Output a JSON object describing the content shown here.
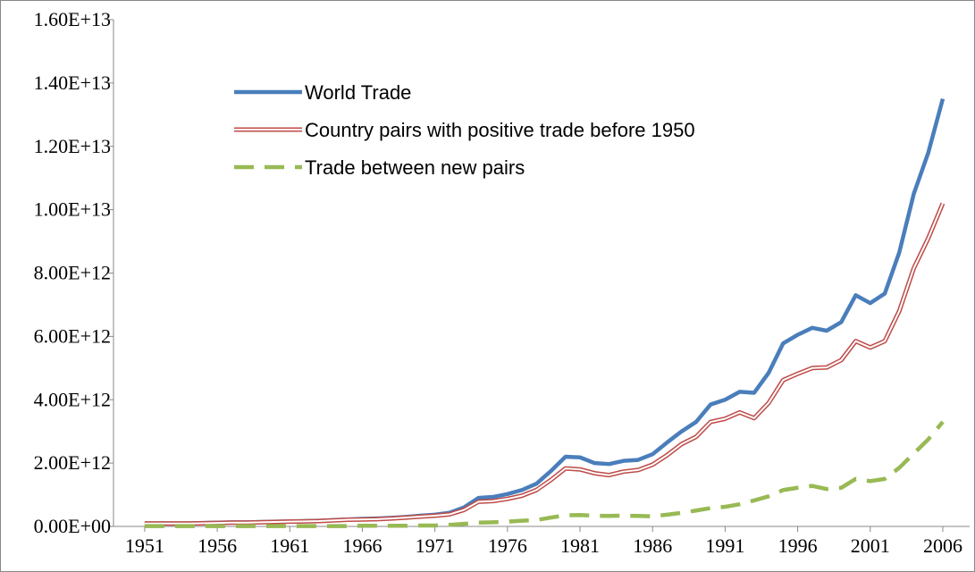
{
  "chart_data": {
    "type": "line",
    "x": [
      1951,
      1952,
      1953,
      1954,
      1955,
      1956,
      1957,
      1958,
      1959,
      1960,
      1961,
      1962,
      1963,
      1964,
      1965,
      1966,
      1967,
      1968,
      1969,
      1970,
      1971,
      1972,
      1973,
      1974,
      1975,
      1976,
      1977,
      1978,
      1979,
      1980,
      1981,
      1982,
      1983,
      1984,
      1985,
      1986,
      1987,
      1988,
      1989,
      1990,
      1991,
      1992,
      1993,
      1994,
      1995,
      1996,
      1997,
      1998,
      1999,
      2000,
      2001,
      2002,
      2003,
      2004,
      2005,
      2006
    ],
    "xlim": [
      1948.85,
      2007.85
    ],
    "xticks": [
      1951,
      1956,
      1961,
      1966,
      1971,
      1976,
      1981,
      1986,
      1991,
      1996,
      2001,
      2006
    ],
    "ylim": [
      0,
      16000000000000.0
    ],
    "yticks": [
      {
        "value": 0,
        "label": "0.00E+00"
      },
      {
        "value": 2000000000000.0,
        "label": "2.00E+12"
      },
      {
        "value": 4000000000000.0,
        "label": "4.00E+12"
      },
      {
        "value": 6000000000000.0,
        "label": "6.00E+12"
      },
      {
        "value": 8000000000000.0,
        "label": "8.00E+12"
      },
      {
        "value": 10000000000000.0,
        "label": "1.00E+13"
      },
      {
        "value": 12000000000000.0,
        "label": "1.20E+13"
      },
      {
        "value": 14000000000000.0,
        "label": "1.40E+13"
      },
      {
        "value": 16000000000000.0,
        "label": "1.60E+13"
      }
    ],
    "grid": false,
    "legend": "upper left",
    "series": [
      {
        "name": "World Trade",
        "color": "#4a7ebb",
        "line_style": "solid",
        "values": [
          100000000000.0,
          100000000000.0,
          100000000000.0,
          100000000000.0,
          110000000000.0,
          120000000000.0,
          130000000000.0,
          130000000000.0,
          140000000000.0,
          150000000000.0,
          160000000000.0,
          170000000000.0,
          180000000000.0,
          200000000000.0,
          220000000000.0,
          240000000000.0,
          250000000000.0,
          270000000000.0,
          300000000000.0,
          340000000000.0,
          370000000000.0,
          430000000000.0,
          600000000000.0,
          900000000000.0,
          930000000000.0,
          1020000000000.0,
          1150000000000.0,
          1350000000000.0,
          1750000000000.0,
          2200000000000.0,
          2180000000000.0,
          2000000000000.0,
          1970000000000.0,
          2070000000000.0,
          2100000000000.0,
          2280000000000.0,
          2650000000000.0,
          3000000000000.0,
          3300000000000.0,
          3850000000000.0,
          4000000000000.0,
          4250000000000.0,
          4220000000000.0,
          4850000000000.0,
          5780000000000.0,
          6050000000000.0,
          6270000000000.0,
          6180000000000.0,
          6450000000000.0,
          7300000000000.0,
          7050000000000.0,
          7350000000000.0,
          8650000000000.0,
          10500000000000.0,
          11800000000000.0,
          13500000000000.0
        ]
      },
      {
        "name": "Country pairs with positive trade before 1950",
        "color": "#be4b48",
        "line_style": "double",
        "values": [
          90000000000.0,
          90000000000.0,
          90000000000.0,
          90000000000.0,
          100000000000.0,
          110000000000.0,
          120000000000.0,
          120000000000.0,
          130000000000.0,
          140000000000.0,
          150000000000.0,
          160000000000.0,
          170000000000.0,
          190000000000.0,
          210000000000.0,
          220000000000.0,
          230000000000.0,
          250000000000.0,
          280000000000.0,
          310000000000.0,
          340000000000.0,
          380000000000.0,
          520000000000.0,
          780000000000.0,
          800000000000.0,
          870000000000.0,
          970000000000.0,
          1150000000000.0,
          1470000000000.0,
          1830000000000.0,
          1800000000000.0,
          1680000000000.0,
          1620000000000.0,
          1730000000000.0,
          1780000000000.0,
          1950000000000.0,
          2250000000000.0,
          2600000000000.0,
          2830000000000.0,
          3300000000000.0,
          3400000000000.0,
          3600000000000.0,
          3420000000000.0,
          3900000000000.0,
          4620000000000.0,
          4820000000000.0,
          5000000000000.0,
          5020000000000.0,
          5250000000000.0,
          5850000000000.0,
          5650000000000.0,
          5850000000000.0,
          6800000000000.0,
          8150000000000.0,
          9100000000000.0,
          10200000000000.0
        ]
      },
      {
        "name": "Trade between new pairs",
        "color": "#98b954",
        "line_style": "dashed",
        "values": [
          10000000000.0,
          10000000000.0,
          10000000000.0,
          10000000000.0,
          10000000000.0,
          10000000000.0,
          10000000000.0,
          10000000000.0,
          10000000000.0,
          10000000000.0,
          10000000000.0,
          10000000000.0,
          10000000000.0,
          10000000000.0,
          10000000000.0,
          20000000000.0,
          20000000000.0,
          20000000000.0,
          20000000000.0,
          30000000000.0,
          30000000000.0,
          50000000000.0,
          80000000000.0,
          120000000000.0,
          130000000000.0,
          150000000000.0,
          180000000000.0,
          200000000000.0,
          280000000000.0,
          350000000000.0,
          360000000000.0,
          340000000000.0,
          330000000000.0,
          340000000000.0,
          330000000000.0,
          320000000000.0,
          370000000000.0,
          430000000000.0,
          500000000000.0,
          580000000000.0,
          620000000000.0,
          700000000000.0,
          820000000000.0,
          950000000000.0,
          1150000000000.0,
          1220000000000.0,
          1280000000000.0,
          1180000000000.0,
          1220000000000.0,
          1500000000000.0,
          1430000000000.0,
          1500000000000.0,
          1850000000000.0,
          2300000000000.0,
          2750000000000.0,
          3300000000000.0
        ]
      }
    ]
  }
}
